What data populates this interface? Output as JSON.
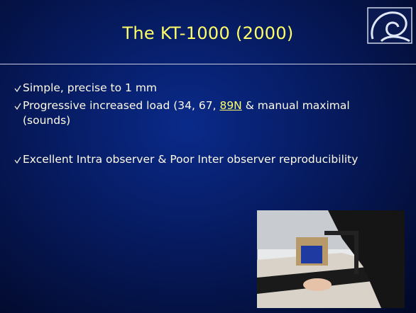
{
  "slide": {
    "title": "The KT-1000 (2000)",
    "bullets": [
      {
        "parts": [
          "Simple, precise to 1 mm"
        ]
      },
      {
        "parts": [
          "Progressive increased load (34, 67, ",
          "89N",
          " & manual maximal (sounds)"
        ],
        "underlined": 1
      },
      {
        "parts": [
          "Excellent Intra observer & Poor Inter observer reproducibility"
        ]
      }
    ]
  }
}
